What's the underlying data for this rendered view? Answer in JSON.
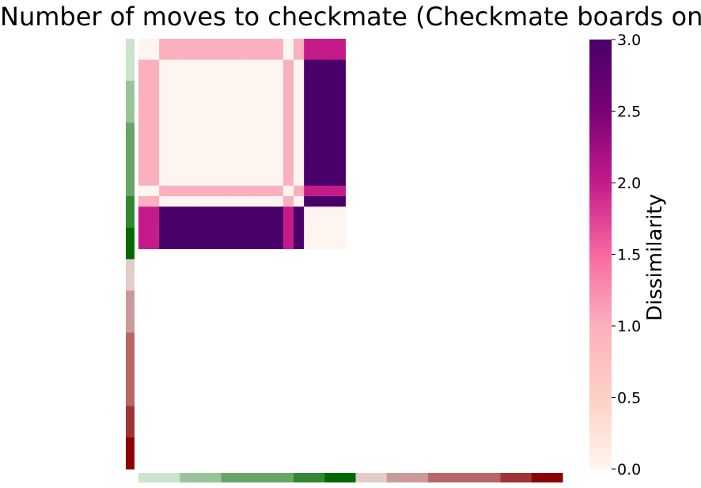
{
  "chart_data": {
    "type": "heatmap",
    "title": "Number of moves to checkmate (Checkmate boards only)",
    "colorbar": {
      "label": "Dissimilarity",
      "range": [
        0.0,
        3.0
      ],
      "ticks": [
        "0.0",
        "0.5",
        "1.0",
        "1.5",
        "2.0",
        "2.5",
        "3.0"
      ],
      "colors": [
        "#fff5f0",
        "#fdd0c4",
        "#fbb1bd",
        "#f768a1",
        "#c51b8a",
        "#7a0177",
        "#49006a"
      ]
    },
    "groups": {
      "sizes": [
        4,
        4,
        7,
        3,
        3,
        3,
        4,
        7,
        3,
        3
      ],
      "colors": [
        "#cce3cc",
        "#99c499",
        "#66a666",
        "#338733",
        "#006900",
        "#e5cccc",
        "#cc9999",
        "#b86666",
        "#a23333",
        "#8b0000"
      ]
    },
    "matrix": [
      [
        0,
        0,
        1,
        1,
        1,
        1,
        1,
        1,
        1,
        1,
        1,
        1,
        1,
        1,
        0,
        1,
        2,
        2,
        2,
        2
      ],
      [
        0,
        0,
        1,
        1,
        1,
        1,
        1,
        1,
        1,
        1,
        1,
        1,
        1,
        1,
        0,
        1,
        2,
        2,
        2,
        2
      ],
      [
        1,
        1,
        0,
        0,
        0,
        0,
        0,
        0,
        0,
        0,
        0,
        0,
        0,
        0,
        1,
        0,
        3,
        3,
        3,
        3
      ],
      [
        1,
        1,
        0,
        0,
        0,
        0,
        0,
        0,
        0,
        0,
        0,
        0,
        0,
        0,
        1,
        0,
        3,
        3,
        3,
        3
      ],
      [
        1,
        1,
        0,
        0,
        0,
        0,
        0,
        0,
        0,
        0,
        0,
        0,
        0,
        0,
        1,
        0,
        3,
        3,
        3,
        3
      ],
      [
        1,
        1,
        0,
        0,
        0,
        0,
        0,
        0,
        0,
        0,
        0,
        0,
        0,
        0,
        1,
        0,
        3,
        3,
        3,
        3
      ],
      [
        1,
        1,
        0,
        0,
        0,
        0,
        0,
        0,
        0,
        0,
        0,
        0,
        0,
        0,
        1,
        0,
        3,
        3,
        3,
        3
      ],
      [
        1,
        1,
        0,
        0,
        0,
        0,
        0,
        0,
        0,
        0,
        0,
        0,
        0,
        0,
        1,
        0,
        3,
        3,
        3,
        3
      ],
      [
        1,
        1,
        0,
        0,
        0,
        0,
        0,
        0,
        0,
        0,
        0,
        0,
        0,
        0,
        1,
        0,
        3,
        3,
        3,
        3
      ],
      [
        1,
        1,
        0,
        0,
        0,
        0,
        0,
        0,
        0,
        0,
        0,
        0,
        0,
        0,
        1,
        0,
        3,
        3,
        3,
        3
      ],
      [
        1,
        1,
        0,
        0,
        0,
        0,
        0,
        0,
        0,
        0,
        0,
        0,
        0,
        0,
        1,
        0,
        3,
        3,
        3,
        3
      ],
      [
        1,
        1,
        0,
        0,
        0,
        0,
        0,
        0,
        0,
        0,
        0,
        0,
        0,
        0,
        1,
        0,
        3,
        3,
        3,
        3
      ],
      [
        1,
        1,
        0,
        0,
        0,
        0,
        0,
        0,
        0,
        0,
        0,
        0,
        0,
        0,
        1,
        0,
        3,
        3,
        3,
        3
      ],
      [
        1,
        1,
        0,
        0,
        0,
        0,
        0,
        0,
        0,
        0,
        0,
        0,
        0,
        0,
        1,
        0,
        3,
        3,
        3,
        3
      ],
      [
        0,
        0,
        1,
        1,
        1,
        1,
        1,
        1,
        1,
        1,
        1,
        1,
        1,
        1,
        0,
        1,
        2,
        2,
        2,
        2
      ],
      [
        1,
        1,
        0,
        0,
        0,
        0,
        0,
        0,
        0,
        0,
        0,
        0,
        0,
        0,
        1,
        0,
        3,
        3,
        3,
        3
      ],
      [
        2,
        2,
        3,
        3,
        3,
        3,
        3,
        3,
        3,
        3,
        3,
        3,
        3,
        3,
        2,
        3,
        0,
        0,
        0,
        0
      ],
      [
        2,
        2,
        3,
        3,
        3,
        3,
        3,
        3,
        3,
        3,
        3,
        3,
        3,
        3,
        2,
        3,
        0,
        0,
        0,
        0
      ],
      [
        2,
        2,
        3,
        3,
        3,
        3,
        3,
        3,
        3,
        3,
        3,
        3,
        3,
        3,
        2,
        3,
        0,
        0,
        0,
        0
      ],
      [
        2,
        2,
        3,
        3,
        3,
        3,
        3,
        3,
        3,
        3,
        3,
        3,
        3,
        3,
        2,
        3,
        0,
        0,
        0,
        0
      ]
    ],
    "legend": "none",
    "grid": false
  }
}
